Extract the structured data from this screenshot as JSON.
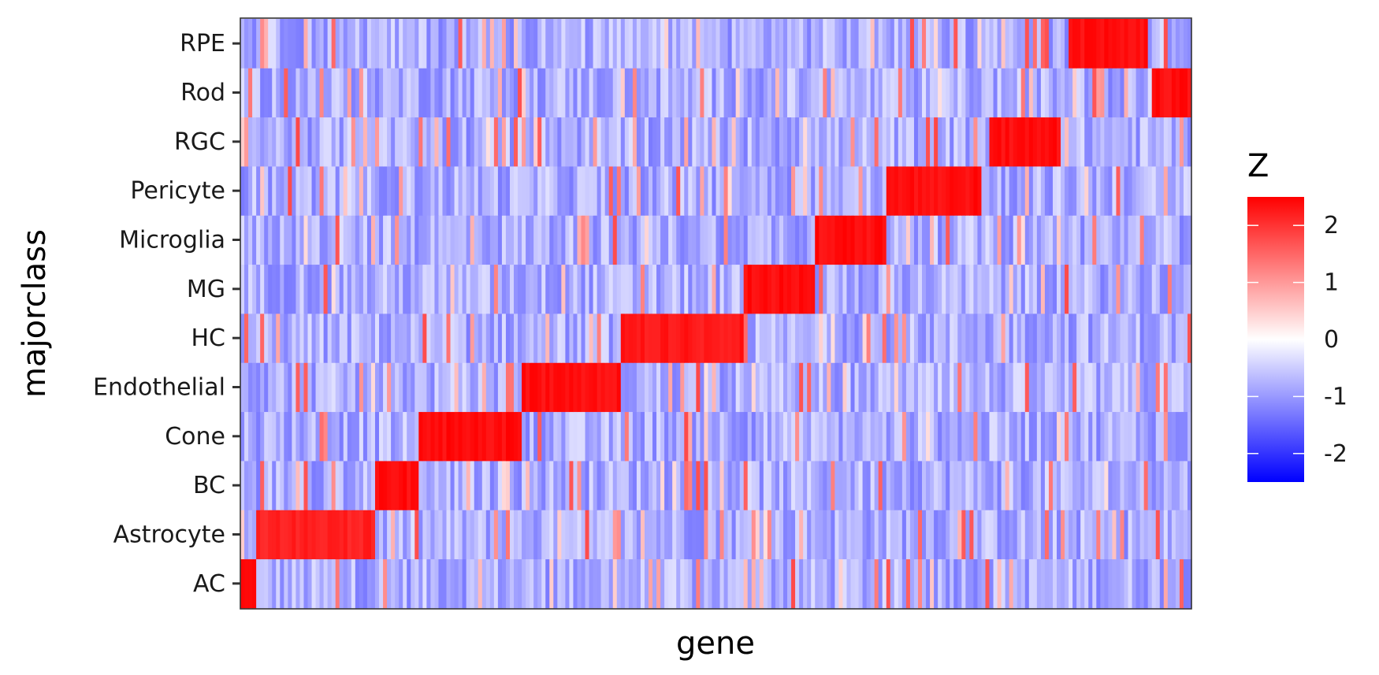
{
  "chart_data": {
    "type": "heatmap",
    "xlabel": "gene",
    "ylabel": "majorclass",
    "y_categories": [
      "AC",
      "Astrocyte",
      "BC",
      "Cone",
      "Endothelial",
      "HC",
      "MG",
      "Microglia",
      "Pericyte",
      "RGC",
      "Rod",
      "RPE"
    ],
    "x_tick_labels": [],
    "n_genes": 240,
    "color_scale": {
      "title": "Z",
      "low": "#0000ff",
      "mid": "#ffffff",
      "high": "#ff0000",
      "midpoint": 0,
      "limits": [
        -2.5,
        2.5
      ],
      "breaks": [
        -2,
        -1,
        0,
        1,
        2
      ],
      "break_labels": [
        "-2",
        "-1",
        "0",
        "1",
        "2"
      ]
    },
    "marker_blocks": [
      {
        "class": "AC",
        "gene_start": 0,
        "gene_end": 4,
        "z": 2.5
      },
      {
        "class": "Astrocyte",
        "gene_start": 4,
        "gene_end": 34,
        "z": 2.3
      },
      {
        "class": "BC",
        "gene_start": 34,
        "gene_end": 45,
        "z": 2.5
      },
      {
        "class": "Cone",
        "gene_start": 45,
        "gene_end": 71,
        "z": 2.5
      },
      {
        "class": "Endothelial",
        "gene_start": 71,
        "gene_end": 96,
        "z": 2.5
      },
      {
        "class": "HC",
        "gene_start": 96,
        "gene_end": 127,
        "z": 2.4
      },
      {
        "class": "MG",
        "gene_start": 127,
        "gene_end": 145,
        "z": 2.5
      },
      {
        "class": "Microglia",
        "gene_start": 145,
        "gene_end": 163,
        "z": 2.5
      },
      {
        "class": "Pericyte",
        "gene_start": 163,
        "gene_end": 187,
        "z": 2.5
      },
      {
        "class": "RGC",
        "gene_start": 189,
        "gene_end": 207,
        "z": 2.5
      },
      {
        "class": "Rod",
        "gene_start": 230,
        "gene_end": 240,
        "z": 2.5
      },
      {
        "class": "RPE",
        "gene_start": 209,
        "gene_end": 229,
        "z": 2.5
      }
    ],
    "background": {
      "z_mean": -0.8,
      "z_spread": 0.5,
      "hot_fraction": 0.1,
      "hot_range": [
        0.3,
        1.8
      ]
    },
    "grid": false,
    "legend_position": "right"
  }
}
